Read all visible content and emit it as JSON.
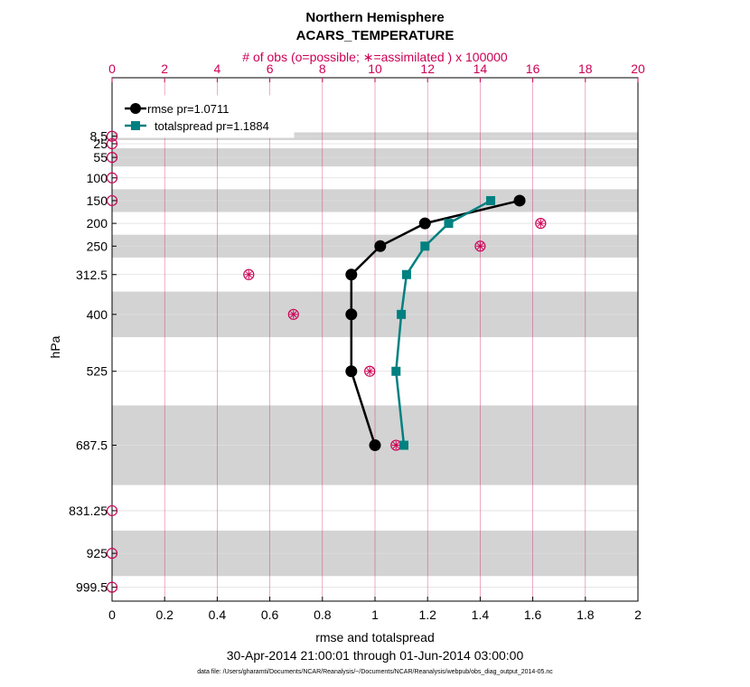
{
  "chart_data": {
    "type": "line",
    "title": "Northern Hemisphere",
    "subtitle": "ACARS_TEMPERATURE",
    "top_axis_label": "# of obs (o=possible; ∗=assimilated ) x 100000",
    "xlabel": "rmse and totalspread",
    "ylabel": "hPa",
    "date_range": "30-Apr-2014 21:00:01 through 01-Jun-2014 03:00:00",
    "data_file": "data file: /Users/gharamti/Documents/NCAR/Reanalysis/~/Documents/NCAR/Reanalysis/webpub/obs_diag_output_2014-05.nc",
    "xlim": [
      0,
      2
    ],
    "top_xlim": [
      0,
      20
    ],
    "x_ticks": [
      "0",
      "0.2",
      "0.4",
      "0.6",
      "0.8",
      "1",
      "1.2",
      "1.4",
      "1.6",
      "1.8",
      "2"
    ],
    "top_ticks": [
      "0",
      "2",
      "4",
      "6",
      "8",
      "10",
      "12",
      "14",
      "16",
      "18",
      "20"
    ],
    "levels": [
      8.5,
      25,
      55,
      100,
      150,
      200,
      250,
      312.5,
      400,
      525,
      687.5,
      831.25,
      925,
      999.5
    ],
    "level_labels": [
      "8.5",
      "25",
      "55",
      "100",
      "150",
      "200",
      "250",
      "312.5",
      "400",
      "525",
      "687.5",
      "831.25",
      "925",
      "999.5"
    ],
    "shaded_bands": [
      [
        0,
        17
      ],
      [
        35,
        75
      ],
      [
        125,
        175
      ],
      [
        225,
        275
      ],
      [
        350,
        450
      ],
      [
        600,
        775
      ],
      [
        875,
        975
      ]
    ],
    "ylim": [
      -120,
      1030
    ],
    "series": [
      {
        "name": "rmse pr=1.0711",
        "color": "#000000",
        "marker": "circle",
        "levels": [
          150,
          200,
          250,
          312.5,
          400,
          525,
          687.5
        ],
        "values": [
          1.55,
          1.19,
          1.02,
          0.91,
          0.91,
          0.91,
          1.0
        ]
      },
      {
        "name": "totalspread pr=1.1884",
        "color": "#008080",
        "marker": "square",
        "levels": [
          150,
          200,
          250,
          312.5,
          400,
          525,
          687.5
        ],
        "values": [
          1.44,
          1.28,
          1.19,
          1.12,
          1.1,
          1.08,
          1.11
        ]
      }
    ],
    "obs_possible": {
      "levels": [
        8.5,
        25,
        55,
        100,
        150,
        200,
        250,
        312.5,
        400,
        525,
        687.5,
        831.25,
        925,
        999.5
      ],
      "values": [
        0,
        0,
        0,
        0,
        0,
        16.3,
        14.0,
        5.2,
        6.9,
        9.8,
        10.8,
        0,
        0,
        0
      ]
    },
    "obs_assimilated": {
      "levels": [
        200,
        250,
        312.5,
        400,
        525,
        687.5
      ],
      "values": [
        16.3,
        14.0,
        5.2,
        6.9,
        9.8,
        10.8
      ]
    },
    "colors": {
      "obs": "#cc0055",
      "band": "#d3d3d3",
      "grid": "#dddddd",
      "vgrid": "#cc0055"
    }
  }
}
